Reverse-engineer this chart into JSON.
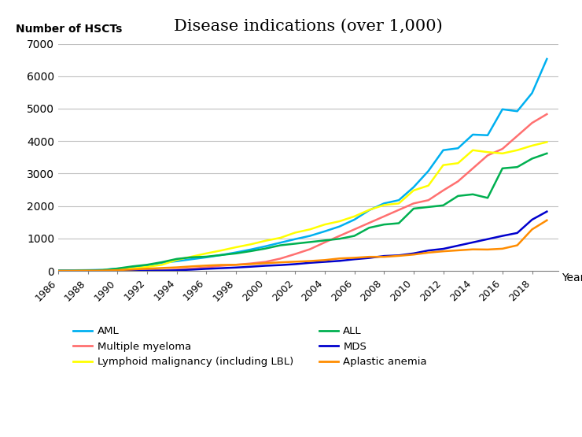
{
  "title": "Disease indications (over 1,000)",
  "ylabel": "Number of HSCTs",
  "xlabel": "Year",
  "ylim": [
    0,
    7000
  ],
  "yticks": [
    0,
    1000,
    2000,
    3000,
    4000,
    5000,
    6000,
    7000
  ],
  "years": [
    1986,
    1987,
    1988,
    1989,
    1990,
    1991,
    1992,
    1993,
    1994,
    1995,
    1996,
    1997,
    1998,
    1999,
    2000,
    2001,
    2002,
    2003,
    2004,
    2005,
    2006,
    2007,
    2008,
    2009,
    2010,
    2011,
    2012,
    2013,
    2014,
    2015,
    2016,
    2017,
    2018,
    2019
  ],
  "series": [
    {
      "name": "AML",
      "color": "#00B0F0",
      "values": [
        20,
        20,
        25,
        35,
        70,
        100,
        170,
        250,
        300,
        360,
        420,
        490,
        570,
        660,
        760,
        870,
        980,
        1080,
        1220,
        1370,
        1580,
        1870,
        2080,
        2180,
        2580,
        3080,
        3720,
        3780,
        4200,
        4180,
        4980,
        4920,
        5480,
        6530
      ]
    },
    {
      "name": "Multiple myeloma",
      "color": "#FF7070",
      "values": [
        0,
        0,
        0,
        0,
        0,
        10,
        15,
        20,
        40,
        70,
        110,
        160,
        190,
        230,
        280,
        380,
        520,
        670,
        880,
        1080,
        1280,
        1480,
        1680,
        1880,
        2080,
        2180,
        2480,
        2760,
        3160,
        3560,
        3760,
        4160,
        4560,
        4830
      ]
    },
    {
      "name": "Lymphoid malignancy (including LBL)",
      "color": "#FFFF00",
      "values": [
        5,
        5,
        15,
        25,
        45,
        75,
        125,
        190,
        340,
        440,
        540,
        630,
        730,
        820,
        930,
        1020,
        1180,
        1280,
        1430,
        1530,
        1680,
        1880,
        2030,
        2080,
        2480,
        2630,
        3260,
        3320,
        3720,
        3660,
        3620,
        3720,
        3860,
        3970
      ]
    },
    {
      "name": "ALL",
      "color": "#00B050",
      "values": [
        5,
        5,
        15,
        25,
        75,
        140,
        190,
        270,
        370,
        420,
        440,
        490,
        540,
        610,
        690,
        790,
        840,
        890,
        940,
        990,
        1080,
        1330,
        1430,
        1470,
        1920,
        1970,
        2020,
        2310,
        2360,
        2250,
        3160,
        3200,
        3460,
        3620
      ]
    },
    {
      "name": "MDS",
      "color": "#0000CD",
      "values": [
        0,
        0,
        0,
        0,
        0,
        0,
        5,
        10,
        20,
        40,
        65,
        85,
        105,
        130,
        160,
        180,
        210,
        250,
        280,
        310,
        360,
        400,
        460,
        480,
        540,
        630,
        680,
        780,
        880,
        980,
        1080,
        1170,
        1580,
        1830
      ]
    },
    {
      "name": "Aplastic anemia",
      "color": "#FF8C00",
      "values": [
        0,
        0,
        5,
        10,
        25,
        45,
        70,
        90,
        110,
        140,
        165,
        185,
        190,
        210,
        240,
        265,
        285,
        305,
        335,
        385,
        405,
        435,
        435,
        465,
        505,
        565,
        605,
        635,
        665,
        660,
        685,
        790,
        1280,
        1560
      ]
    }
  ],
  "xtick_labels": [
    "1986",
    "1988",
    "1990",
    "1992",
    "1994",
    "1996",
    "1998",
    "2000",
    "2002",
    "2004",
    "2006",
    "2008",
    "2010",
    "2012",
    "2014",
    "2016",
    "2018"
  ],
  "xtick_positions": [
    1986,
    1988,
    1990,
    1992,
    1994,
    1996,
    1998,
    2000,
    2002,
    2004,
    2006,
    2008,
    2010,
    2012,
    2014,
    2016,
    2018
  ]
}
